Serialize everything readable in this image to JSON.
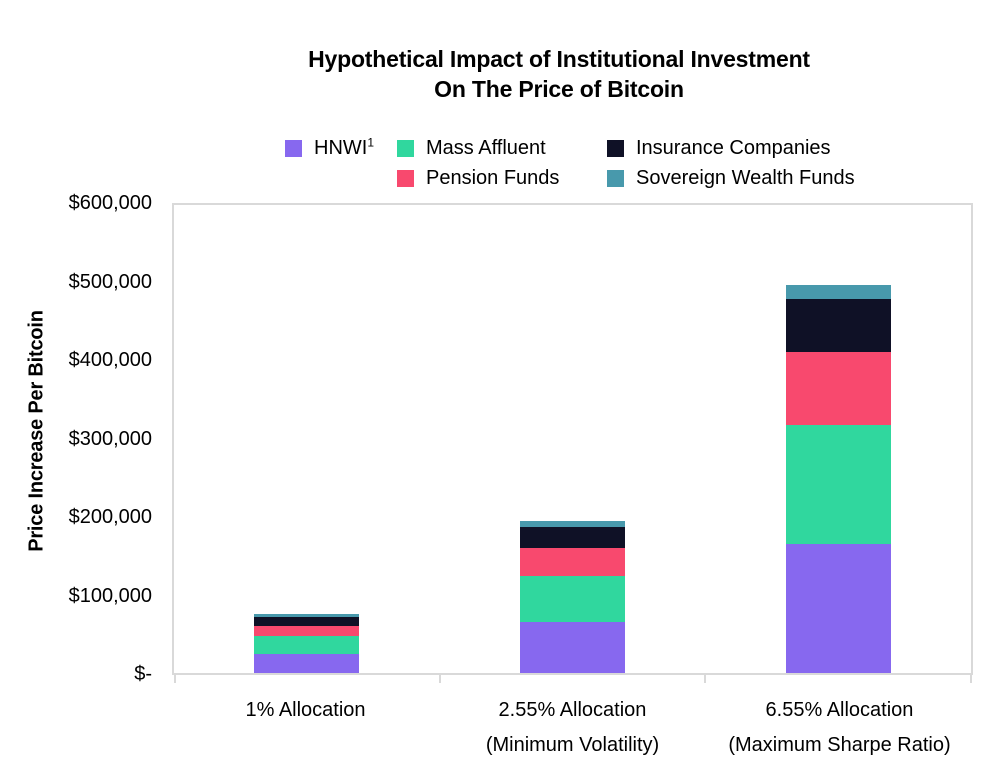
{
  "title": {
    "line1": "Hypothetical Impact of Institutional Investment",
    "line2": "On The Price of Bitcoin"
  },
  "legend": {
    "items": [
      {
        "label": "HNWI",
        "sup": "1",
        "color": "#8768EF"
      },
      {
        "label": "Mass Affluent",
        "color": "#30D79E"
      },
      {
        "label": "Insurance Companies",
        "color": "#0F1126"
      },
      {
        "label": "Pension Funds",
        "color": "#F8496E"
      },
      {
        "label": "Sovereign Wealth Funds",
        "color": "#4899AC"
      }
    ]
  },
  "chart_data": {
    "type": "bar",
    "stacked": true,
    "title": "Hypothetical Impact of Institutional Investment On The Price of Bitcoin",
    "xlabel": "",
    "ylabel": "Price Increase Per Bitcoin",
    "ylim": [
      0,
      600000
    ],
    "grid": false,
    "legend_position": "top",
    "axis_color": "#d9d9d9",
    "text_color": "#000000",
    "categories": [
      "1% Allocation",
      "2.55% Allocation (Minimum Volatility)",
      "6.55% Allocation (Maximum Sharpe Ratio)"
    ],
    "category_lines": [
      [
        "1% Allocation",
        ""
      ],
      [
        "2.55% Allocation",
        "(Minimum Volatility)"
      ],
      [
        "6.55% Allocation",
        "(Maximum Sharpe Ratio)"
      ]
    ],
    "y_ticks": [
      {
        "value": 600000,
        "label": "$600,000"
      },
      {
        "value": 500000,
        "label": "$500,000"
      },
      {
        "value": 400000,
        "label": "$400,000"
      },
      {
        "value": 300000,
        "label": "$300,000"
      },
      {
        "value": 200000,
        "label": "$200,000"
      },
      {
        "value": 100000,
        "label": "$100,000"
      },
      {
        "value": 0,
        "label": "$-"
      }
    ],
    "series": [
      {
        "name": "HNWI",
        "color": "#8768EF",
        "values": [
          24000,
          65000,
          166000
        ]
      },
      {
        "name": "Mass Affluent",
        "color": "#30D79E",
        "values": [
          23500,
          59000,
          152000
        ]
      },
      {
        "name": "Pension Funds",
        "color": "#F8496E",
        "values": [
          13000,
          36000,
          94000
        ]
      },
      {
        "name": "Insurance Companies",
        "color": "#0F1126",
        "values": [
          11500,
          27000,
          68000
        ]
      },
      {
        "name": "Sovereign Wealth Funds",
        "color": "#4899AC",
        "values": [
          4000,
          7500,
          17000
        ]
      }
    ],
    "stack_order_bottom_to_top": [
      "HNWI",
      "Mass Affluent",
      "Pension Funds",
      "Insurance Companies",
      "Sovereign Wealth Funds"
    ],
    "approx_totals": [
      76000,
      194500,
      497000
    ]
  }
}
